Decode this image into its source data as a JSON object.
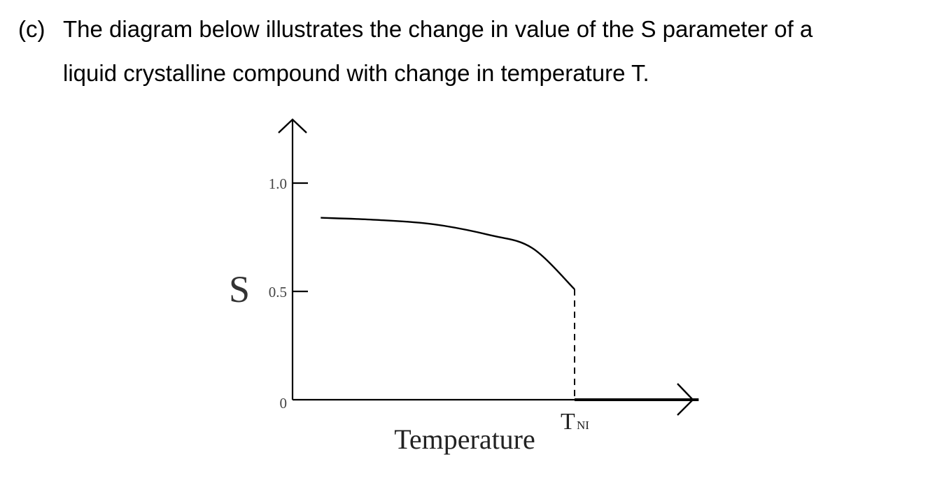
{
  "question": {
    "label": "(c)",
    "line1": "The diagram below illustrates the change in value of the S parameter of a",
    "line2": "liquid crystalline compound with change in temperature T."
  },
  "chart_data": {
    "type": "line",
    "title": "",
    "xlabel": "Temperature",
    "ylabel": "S",
    "x_tick_labels": [
      {
        "text": "T",
        "sub": "NI",
        "x": 1.0
      }
    ],
    "y_ticks": [
      {
        "label": "1.0",
        "value": 1.0
      },
      {
        "label": "0.5",
        "value": 0.5
      },
      {
        "label": "0",
        "value": 0
      }
    ],
    "ylim": [
      0,
      1.0
    ],
    "xlim": [
      0,
      1.0
    ],
    "series": [
      {
        "style": "solid",
        "x": [
          0.1,
          0.3,
          0.5,
          0.7,
          0.85,
          1.0
        ],
        "y": [
          0.84,
          0.83,
          0.81,
          0.76,
          0.7,
          0.51
        ]
      },
      {
        "style": "dashed",
        "x": [
          1.0,
          1.0
        ],
        "y": [
          0.51,
          0
        ]
      },
      {
        "style": "thick",
        "x": [
          1.0,
          1.44
        ],
        "y": [
          0,
          0
        ]
      }
    ],
    "grid": false,
    "legend": "none"
  }
}
